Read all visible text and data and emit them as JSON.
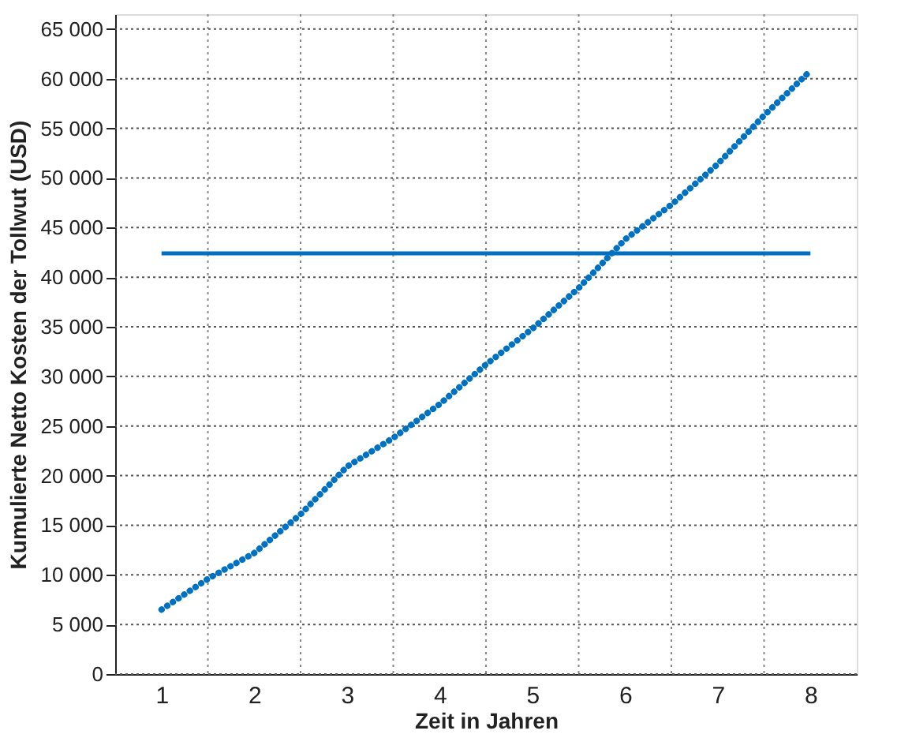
{
  "chart_data": {
    "type": "line",
    "xlabel": "Zeit in Jahren",
    "ylabel": "Kumulierte Netto Kosten der Tollwut (USD)",
    "series": [
      {
        "color": "#0070c0",
        "line_style": "dotted",
        "x": [
          1,
          1.5,
          2,
          2.5,
          3,
          3.5,
          4,
          4.5,
          5,
          5.5,
          6,
          6.5,
          7,
          7.5,
          8
        ],
        "values": [
          6500,
          9600,
          12200,
          16100,
          20900,
          23800,
          27200,
          31200,
          34800,
          38900,
          43800,
          47300,
          51400,
          56300,
          60800
        ]
      },
      {
        "color": "#0070c0",
        "line_style": "solid",
        "x": [
          1,
          8
        ],
        "values": [
          42400,
          42400
        ]
      }
    ],
    "xlim": [
      0.5,
      8.5
    ],
    "xticks": [
      1,
      2,
      3,
      4,
      5,
      6,
      7,
      8,
      {
        "value": 1.5,
        "label": null
      },
      {
        "value": 2.5,
        "label": null
      },
      {
        "value": 3.5,
        "label": null
      },
      {
        "value": 4.5,
        "label": null
      },
      {
        "value": 5.5,
        "label": null
      },
      {
        "value": 6.5,
        "label": null
      },
      {
        "value": 7.5,
        "label": null
      }
    ],
    "ylim": [
      0,
      66500
    ],
    "yticks": [
      0,
      {
        "value": 5000,
        "label": "5 000"
      },
      {
        "value": 10000,
        "label": "10 000"
      },
      {
        "value": 15000,
        "label": "15 000"
      },
      {
        "value": 20000,
        "label": "20 000"
      },
      {
        "value": 25000,
        "label": "25 000"
      },
      {
        "value": 30000,
        "label": "30 000"
      },
      {
        "value": 35000,
        "label": "35 000"
      },
      {
        "value": 40000,
        "label": "40 000"
      },
      {
        "value": 45000,
        "label": "45 000"
      },
      {
        "value": 50000,
        "label": "50 000"
      },
      {
        "value": 55000,
        "label": "55 000"
      },
      {
        "value": 60000,
        "label": "60 000"
      },
      {
        "value": 65000,
        "label": "65 000"
      }
    ],
    "grid": true
  }
}
